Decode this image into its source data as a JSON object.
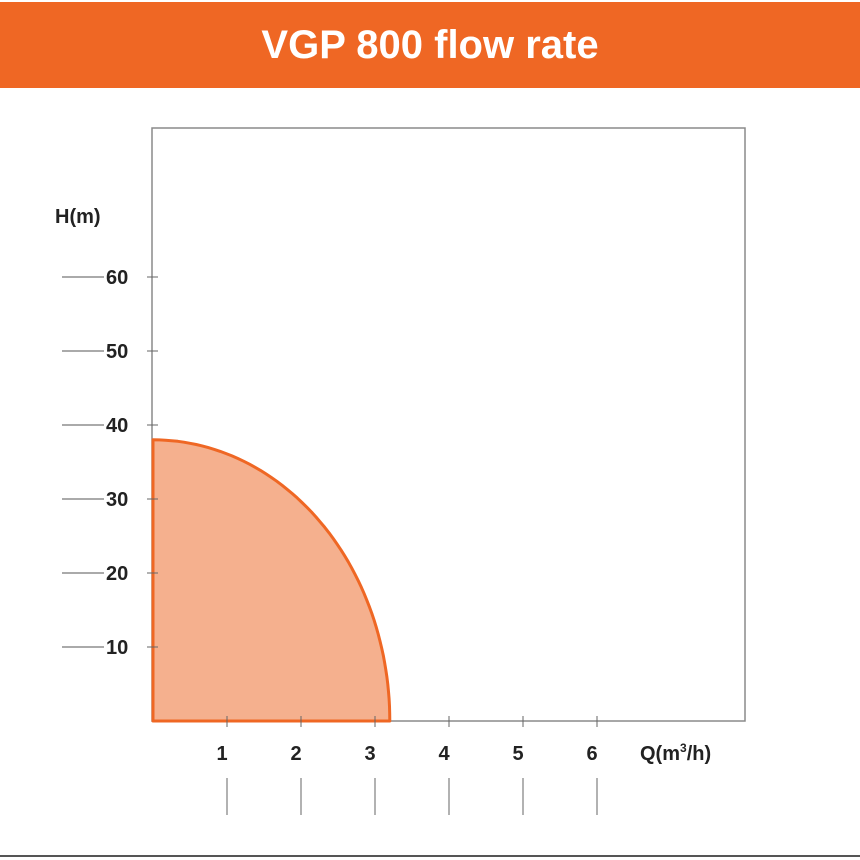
{
  "header": {
    "title": "VGP 800 flow rate",
    "background_color": "#ef6724"
  },
  "chart_data": {
    "type": "area",
    "title": "VGP 800 flow rate",
    "xlabel": "Q(m³/h)",
    "ylabel": "H(m)",
    "x_ticks": [
      1,
      2,
      3,
      4,
      5,
      6
    ],
    "y_ticks": [
      10,
      20,
      30,
      40,
      50,
      60
    ],
    "xlim": [
      0,
      8
    ],
    "ylim": [
      0,
      80
    ],
    "grid": false,
    "legend": null,
    "series": [
      {
        "name": "VGP 800",
        "x": [
          0,
          0.5,
          1.0,
          1.5,
          2.0,
          2.5,
          2.8,
          3.0,
          3.1,
          3.2
        ],
        "y": [
          38,
          37.1,
          34.8,
          31.3,
          26.6,
          20.2,
          15.4,
          11.2,
          8.0,
          0
        ],
        "fill_color": "#f5b08e",
        "line_color": "#ef6724"
      }
    ]
  },
  "axis": {
    "y_title": "H(m)",
    "x_title_main": "Q(m",
    "x_title_sup": "3",
    "x_title_end": "/h)",
    "y_labels": [
      "60",
      "50",
      "40",
      "30",
      "20",
      "10"
    ],
    "x_labels": [
      "1",
      "2",
      "3",
      "4",
      "5",
      "6"
    ]
  }
}
